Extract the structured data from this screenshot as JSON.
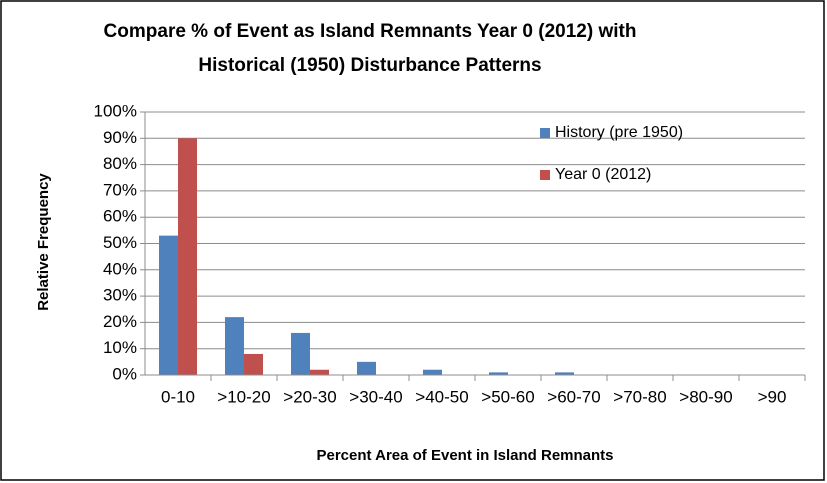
{
  "chart_data": {
    "type": "bar",
    "title": [
      "Compare % of Event as Island Remnants Year 0 (2012) with",
      "Historical (1950) Disturbance Patterns"
    ],
    "x_label": "Percent Area of Event in Island Remnants",
    "y_label": "Relative Frequency",
    "categories": [
      "0-10",
      ">10-20",
      ">20-30",
      ">30-40",
      ">40-50",
      ">50-60",
      ">60-70",
      ">70-80",
      ">80-90",
      ">90"
    ],
    "series": [
      {
        "name": "History (pre 1950)",
        "color": "#4f81bd",
        "values": [
          53,
          22,
          16,
          5,
          2,
          1,
          1,
          0,
          0,
          0
        ]
      },
      {
        "name": "Year 0 (2012)",
        "color": "#c0504d",
        "values": [
          90,
          8,
          2,
          0,
          0,
          0,
          0,
          0,
          0,
          0
        ]
      }
    ],
    "ylim": [
      0,
      100
    ],
    "yticks": [
      {
        "value": 0,
        "label": "0%"
      },
      {
        "value": 10,
        "label": "10%"
      },
      {
        "value": 20,
        "label": "20%"
      },
      {
        "value": 30,
        "label": "30%"
      },
      {
        "value": 40,
        "label": "40%"
      },
      {
        "value": 50,
        "label": "50%"
      },
      {
        "value": 60,
        "label": "60%"
      },
      {
        "value": 70,
        "label": "70%"
      },
      {
        "value": 80,
        "label": "80%"
      },
      {
        "value": 90,
        "label": "90%"
      },
      {
        "value": 100,
        "label": "100%"
      }
    ],
    "grid": true,
    "legend": "upper right"
  }
}
